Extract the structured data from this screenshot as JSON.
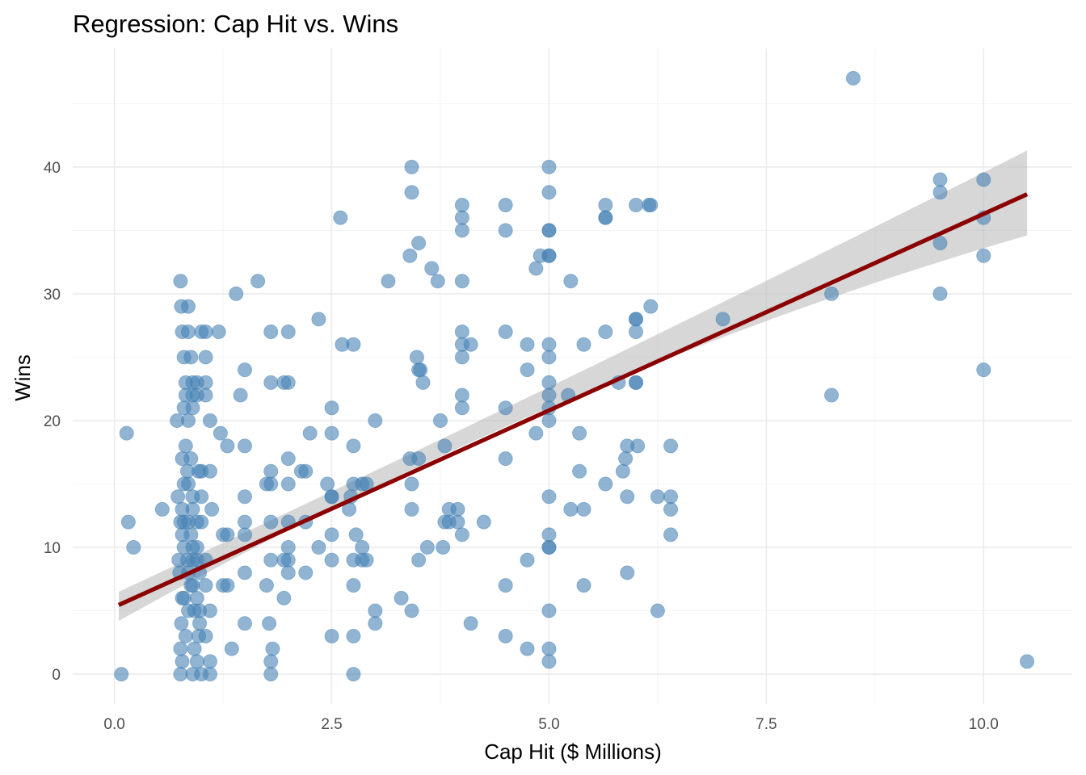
{
  "chart_data": {
    "type": "scatter",
    "title": "Regression: Cap Hit vs. Wins",
    "xlabel": "Cap Hit ($ Millions)",
    "ylabel": "Wins",
    "xlim": [
      -0.48,
      11.02
    ],
    "ylim": [
      -2.35,
      49.35
    ],
    "x_ticks": [
      0,
      2.5,
      5,
      7.5,
      10
    ],
    "x_tick_labels": [
      "0.0",
      "2.5",
      "5.0",
      "7.5",
      "10.0"
    ],
    "y_ticks": [
      0,
      10,
      20,
      30,
      40
    ],
    "y_tick_labels": [
      "0",
      "10",
      "20",
      "30",
      "40"
    ],
    "grid": true,
    "legend": "none",
    "colors": {
      "points": "#4682b4",
      "fit_line": "#8b0000",
      "ribbon": "#bdbdbd"
    },
    "regression": {
      "x_range": [
        0.05,
        10.5
      ],
      "intercept": 5.3,
      "slope": 3.1,
      "ci_lower_at_ends": [
        4.2,
        34.6
      ],
      "ci_upper_at_ends": [
        6.5,
        41.3
      ],
      "ci_at_center": [
        15.4,
        16.7
      ],
      "x_center": 3.2
    },
    "points": [
      [
        0.08,
        0
      ],
      [
        0.14,
        19
      ],
      [
        0.16,
        12
      ],
      [
        0.22,
        10
      ],
      [
        0.55,
        13
      ],
      [
        0.72,
        20
      ],
      [
        0.73,
        14
      ],
      [
        0.74,
        9
      ],
      [
        0.75,
        8
      ],
      [
        0.76,
        0
      ],
      [
        0.76,
        2
      ],
      [
        0.77,
        4
      ],
      [
        0.78,
        1
      ],
      [
        0.8,
        6
      ],
      [
        0.82,
        3
      ],
      [
        0.85,
        5
      ],
      [
        0.88,
        7
      ],
      [
        0.9,
        0
      ],
      [
        0.92,
        2
      ],
      [
        0.95,
        1
      ],
      [
        0.97,
        3
      ],
      [
        0.98,
        4
      ],
      [
        1.0,
        0
      ],
      [
        0.76,
        31
      ],
      [
        0.77,
        29
      ],
      [
        0.78,
        27
      ],
      [
        0.8,
        25
      ],
      [
        0.85,
        29
      ],
      [
        0.85,
        27
      ],
      [
        0.88,
        25
      ],
      [
        0.9,
        23
      ],
      [
        0.82,
        23
      ],
      [
        0.82,
        22
      ],
      [
        0.9,
        21
      ],
      [
        0.8,
        21
      ],
      [
        0.85,
        20
      ],
      [
        0.9,
        22
      ],
      [
        0.95,
        22
      ],
      [
        0.95,
        23
      ],
      [
        1.0,
        27
      ],
      [
        0.78,
        17
      ],
      [
        0.82,
        18
      ],
      [
        0.84,
        16
      ],
      [
        0.85,
        15
      ],
      [
        0.88,
        17
      ],
      [
        0.8,
        15
      ],
      [
        0.78,
        13
      ],
      [
        0.8,
        12
      ],
      [
        0.85,
        12
      ],
      [
        0.9,
        13
      ],
      [
        0.9,
        14
      ],
      [
        0.95,
        12
      ],
      [
        0.88,
        11
      ],
      [
        0.9,
        10
      ],
      [
        0.95,
        10
      ],
      [
        1.0,
        14
      ],
      [
        1.0,
        12
      ],
      [
        0.76,
        12
      ],
      [
        0.78,
        11
      ],
      [
        0.8,
        10
      ],
      [
        0.84,
        9
      ],
      [
        0.85,
        8
      ],
      [
        0.9,
        9
      ],
      [
        0.95,
        9
      ],
      [
        0.98,
        8
      ],
      [
        0.97,
        16
      ],
      [
        1.0,
        16
      ],
      [
        0.92,
        5
      ],
      [
        0.95,
        6
      ],
      [
        0.98,
        5
      ],
      [
        0.78,
        6
      ],
      [
        0.9,
        7
      ],
      [
        1.05,
        27
      ],
      [
        1.05,
        25
      ],
      [
        1.05,
        23
      ],
      [
        1.05,
        22
      ],
      [
        1.1,
        20
      ],
      [
        1.2,
        27
      ],
      [
        1.22,
        19
      ],
      [
        1.3,
        18
      ],
      [
        1.1,
        16
      ],
      [
        1.12,
        13
      ],
      [
        1.25,
        11
      ],
      [
        1.3,
        11
      ],
      [
        1.05,
        9
      ],
      [
        1.05,
        7
      ],
      [
        1.1,
        5
      ],
      [
        1.05,
        3
      ],
      [
        1.1,
        1
      ],
      [
        1.1,
        0
      ],
      [
        1.25,
        7
      ],
      [
        1.3,
        7
      ],
      [
        1.35,
        2
      ],
      [
        1.4,
        30
      ],
      [
        1.45,
        22
      ],
      [
        1.5,
        24
      ],
      [
        1.5,
        18
      ],
      [
        1.5,
        14
      ],
      [
        1.5,
        12
      ],
      [
        1.5,
        11
      ],
      [
        1.5,
        8
      ],
      [
        1.5,
        4
      ],
      [
        1.65,
        31
      ],
      [
        1.75,
        15
      ],
      [
        1.75,
        7
      ],
      [
        1.78,
        4
      ],
      [
        1.8,
        1
      ],
      [
        1.8,
        0
      ],
      [
        1.8,
        27
      ],
      [
        1.8,
        23
      ],
      [
        1.8,
        16
      ],
      [
        1.8,
        15
      ],
      [
        1.8,
        12
      ],
      [
        1.8,
        9
      ],
      [
        1.82,
        2
      ],
      [
        1.95,
        23
      ],
      [
        2.0,
        23
      ],
      [
        2.0,
        27
      ],
      [
        2.0,
        17
      ],
      [
        2.0,
        15
      ],
      [
        2.0,
        12
      ],
      [
        2.0,
        10
      ],
      [
        2.0,
        9
      ],
      [
        2.0,
        8
      ],
      [
        1.95,
        9
      ],
      [
        1.95,
        6
      ],
      [
        2.15,
        16
      ],
      [
        2.2,
        16
      ],
      [
        2.2,
        12
      ],
      [
        2.2,
        8
      ],
      [
        2.25,
        19
      ],
      [
        2.35,
        10
      ],
      [
        2.35,
        28
      ],
      [
        2.45,
        15
      ],
      [
        2.5,
        14
      ],
      [
        2.5,
        14
      ],
      [
        2.5,
        11
      ],
      [
        2.5,
        9
      ],
      [
        2.5,
        3
      ],
      [
        2.5,
        19
      ],
      [
        2.5,
        21
      ],
      [
        2.6,
        36
      ],
      [
        2.62,
        26
      ],
      [
        2.7,
        13
      ],
      [
        2.72,
        14
      ],
      [
        2.75,
        18
      ],
      [
        2.75,
        26
      ],
      [
        2.75,
        15
      ],
      [
        2.78,
        11
      ],
      [
        2.75,
        9
      ],
      [
        2.75,
        7
      ],
      [
        2.75,
        3
      ],
      [
        2.75,
        0
      ],
      [
        2.85,
        15
      ],
      [
        2.85,
        10
      ],
      [
        2.85,
        9
      ],
      [
        2.9,
        15
      ],
      [
        2.9,
        9
      ],
      [
        3.0,
        20
      ],
      [
        3.0,
        5
      ],
      [
        3.0,
        4
      ],
      [
        3.15,
        31
      ],
      [
        3.3,
        6
      ],
      [
        3.42,
        40
      ],
      [
        3.42,
        38
      ],
      [
        3.4,
        33
      ],
      [
        3.4,
        17
      ],
      [
        3.42,
        15
      ],
      [
        3.42,
        13
      ],
      [
        3.42,
        5
      ],
      [
        3.48,
        25
      ],
      [
        3.5,
        24
      ],
      [
        3.52,
        24
      ],
      [
        3.5,
        34
      ],
      [
        3.5,
        17
      ],
      [
        3.5,
        9
      ],
      [
        3.55,
        23
      ],
      [
        3.6,
        10
      ],
      [
        3.65,
        32
      ],
      [
        3.72,
        31
      ],
      [
        3.75,
        20
      ],
      [
        3.78,
        10
      ],
      [
        3.8,
        18
      ],
      [
        3.8,
        12
      ],
      [
        3.85,
        13
      ],
      [
        3.85,
        12
      ],
      [
        3.95,
        13
      ],
      [
        3.95,
        12
      ],
      [
        4.0,
        37
      ],
      [
        4.0,
        36
      ],
      [
        4.0,
        35
      ],
      [
        4.0,
        31
      ],
      [
        4.0,
        27
      ],
      [
        4.0,
        26
      ],
      [
        4.0,
        25
      ],
      [
        4.0,
        22
      ],
      [
        4.0,
        21
      ],
      [
        4.0,
        11
      ],
      [
        4.1,
        26
      ],
      [
        4.1,
        4
      ],
      [
        4.25,
        12
      ],
      [
        4.5,
        37
      ],
      [
        4.5,
        35
      ],
      [
        4.5,
        27
      ],
      [
        4.5,
        21
      ],
      [
        4.5,
        17
      ],
      [
        4.5,
        7
      ],
      [
        4.5,
        3
      ],
      [
        4.75,
        26
      ],
      [
        4.75,
        24
      ],
      [
        4.75,
        9
      ],
      [
        4.75,
        2
      ],
      [
        4.85,
        32
      ],
      [
        4.85,
        19
      ],
      [
        4.9,
        33
      ],
      [
        5.0,
        40
      ],
      [
        5.0,
        38
      ],
      [
        5.0,
        35
      ],
      [
        5.0,
        35
      ],
      [
        5.0,
        33
      ],
      [
        5.0,
        33
      ],
      [
        5.0,
        26
      ],
      [
        5.0,
        25
      ],
      [
        5.0,
        23
      ],
      [
        5.0,
        22
      ],
      [
        5.0,
        21
      ],
      [
        5.0,
        20
      ],
      [
        5.0,
        14
      ],
      [
        5.0,
        11
      ],
      [
        5.0,
        10
      ],
      [
        5.0,
        10
      ],
      [
        5.0,
        5
      ],
      [
        5.0,
        2
      ],
      [
        5.0,
        1
      ],
      [
        5.22,
        22
      ],
      [
        5.25,
        31
      ],
      [
        5.25,
        13
      ],
      [
        5.35,
        19
      ],
      [
        5.35,
        16
      ],
      [
        5.4,
        26
      ],
      [
        5.4,
        13
      ],
      [
        5.4,
        7
      ],
      [
        5.65,
        37
      ],
      [
        5.65,
        36
      ],
      [
        5.65,
        36
      ],
      [
        5.65,
        27
      ],
      [
        5.65,
        15
      ],
      [
        5.8,
        23
      ],
      [
        5.85,
        16
      ],
      [
        5.88,
        17
      ],
      [
        5.9,
        18
      ],
      [
        5.9,
        14
      ],
      [
        5.9,
        8
      ],
      [
        6.0,
        37
      ],
      [
        6.0,
        28
      ],
      [
        6.0,
        28
      ],
      [
        6.0,
        27
      ],
      [
        6.0,
        23
      ],
      [
        6.0,
        23
      ],
      [
        6.02,
        18
      ],
      [
        6.15,
        37
      ],
      [
        6.17,
        37
      ],
      [
        6.17,
        29
      ],
      [
        6.25,
        14
      ],
      [
        6.25,
        5
      ],
      [
        6.4,
        18
      ],
      [
        6.4,
        14
      ],
      [
        6.4,
        13
      ],
      [
        6.4,
        11
      ],
      [
        7.0,
        28
      ],
      [
        8.25,
        30
      ],
      [
        8.25,
        22
      ],
      [
        8.5,
        47
      ],
      [
        9.5,
        39
      ],
      [
        9.5,
        38
      ],
      [
        9.5,
        34
      ],
      [
        9.5,
        30
      ],
      [
        10.0,
        39
      ],
      [
        10.0,
        36
      ],
      [
        10.0,
        33
      ],
      [
        10.0,
        24
      ],
      [
        10.5,
        1
      ]
    ]
  }
}
